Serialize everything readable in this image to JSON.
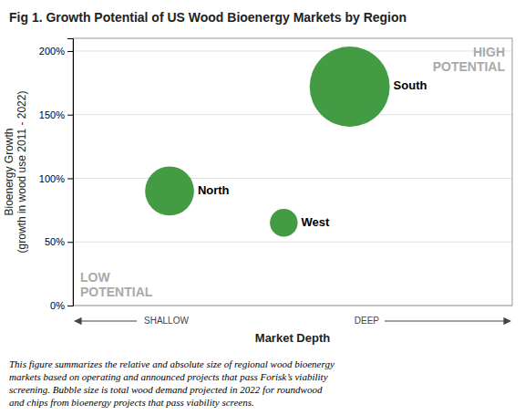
{
  "chart_data": {
    "type": "bubble",
    "title": "Fig 1. Growth Potential of US Wood Bioenergy Markets by Region",
    "x_label": "Market Depth",
    "y_label": "Bioenergy Growth\n(growth in wood use 2011 - 2022)",
    "labels": [
      "North",
      "West",
      "South"
    ],
    "x": [
      2.2,
      4.8,
      6.3
    ],
    "values": [
      90,
      65,
      172
    ],
    "sizes": [
      2800,
      900,
      7500
    ],
    "color": "#228B22",
    "xlim": [
      0,
      10
    ],
    "ylim": [
      0,
      210
    ],
    "yticks": [
      {
        "value": 0,
        "label": "0%"
      },
      {
        "value": 50,
        "label": "50%"
      },
      {
        "value": 100,
        "label": "100%"
      },
      {
        "value": 150,
        "label": "150%"
      },
      {
        "value": 200,
        "label": "200%"
      }
    ],
    "grid": true,
    "tick_labels": "y",
    "annotations": [
      "LOW\nPOTENTIAL",
      "HIGH\nPOTENTIAL",
      "SHALLOW",
      "DEEP"
    ],
    "caption": "This figure summarizes the relative and absolute size of regional wood bioenergy\nmarkets based on operating and announced projects that pass Forisk’s viability\nscreening. Bubble size is total wood demand projected in 2022 for roundwood\nand chips from bioenergy projects that pass viability screens."
  }
}
